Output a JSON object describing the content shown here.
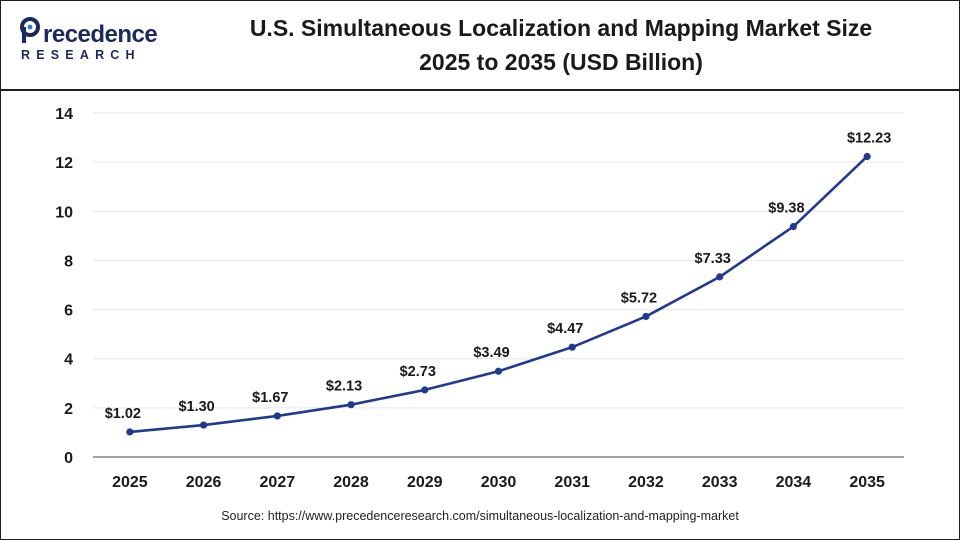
{
  "header": {
    "logo_word": "recedence",
    "logo_sub": "RESEARCH",
    "title_line1": "U.S. Simultaneous Localization and Mapping Market Size",
    "title_line2": "2025 to 2035 (USD Billion)"
  },
  "source": "Source: https://www.precedenceresearch.com/simultaneous-localization-and-mapping-market",
  "colors": {
    "line": "#1f3a8f",
    "grid": "#e6e6e6",
    "axis": "#444444",
    "text": "#1a1a1a",
    "brand": "#1b2a5c"
  },
  "chart_data": {
    "type": "line",
    "title": "U.S. Simultaneous Localization and Mapping Market Size 2025 to 2035 (USD Billion)",
    "categories": [
      "2025",
      "2026",
      "2027",
      "2028",
      "2029",
      "2030",
      "2031",
      "2032",
      "2033",
      "2034",
      "2035"
    ],
    "values": [
      1.02,
      1.3,
      1.67,
      2.13,
      2.73,
      3.49,
      4.47,
      5.72,
      7.33,
      9.38,
      12.23
    ],
    "data_labels": [
      "$1.02",
      "$1.30",
      "$1.67",
      "$2.13",
      "$2.73",
      "$3.49",
      "$4.47",
      "$5.72",
      "$7.33",
      "$9.38",
      "$12.23"
    ],
    "yticks": [
      "0",
      "2",
      "4",
      "6",
      "8",
      "10",
      "12",
      "14"
    ],
    "ylim": [
      0,
      14
    ],
    "grid": true,
    "legend": "none",
    "xlabel": "",
    "ylabel": ""
  }
}
